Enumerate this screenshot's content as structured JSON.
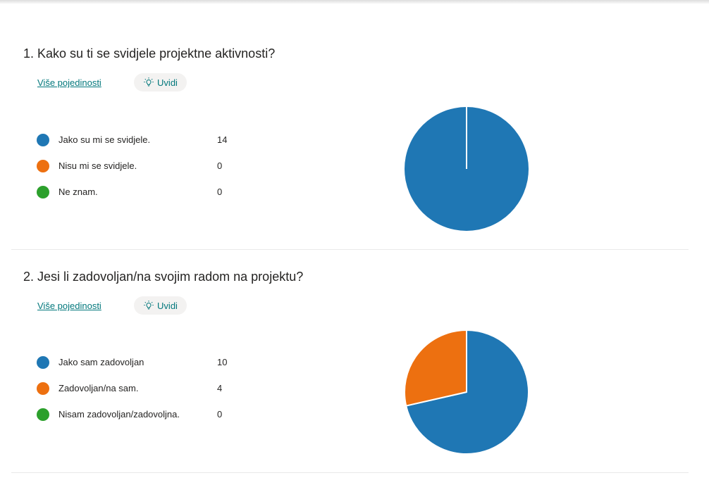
{
  "questions": [
    {
      "number": "1.",
      "title": "Kako su ti se svidjele projektne aktivnosti?",
      "more_details": "Više pojedinosti",
      "insights": "Uvidi",
      "legend": [
        {
          "label": "Jako su mi se svidjele.",
          "count": "14"
        },
        {
          "label": "Nisu mi se svidjele.",
          "count": "0"
        },
        {
          "label": "Ne znam.",
          "count": "0"
        }
      ]
    },
    {
      "number": "2.",
      "title": "Jesi li zadovoljan/na svojim radom na projektu?",
      "more_details": "Više pojedinosti",
      "insights": "Uvidi",
      "legend": [
        {
          "label": "Jako sam zadovoljan",
          "count": "10"
        },
        {
          "label": "Zadovoljan/na sam.",
          "count": "4"
        },
        {
          "label": "Nisam zadovoljan/zadovoljna.",
          "count": "0"
        }
      ]
    }
  ],
  "colors": [
    "#1f77b4",
    "#ed7010",
    "#2ca02c"
  ],
  "chart_data": [
    {
      "type": "pie",
      "categories": [
        "Jako su mi se svidjele.",
        "Nisu mi se svidjele.",
        "Ne znam."
      ],
      "values": [
        14,
        0,
        0
      ]
    },
    {
      "type": "pie",
      "categories": [
        "Jako sam zadovoljan",
        "Zadovoljan/na sam.",
        "Nisam zadovoljan/zadovoljna."
      ],
      "values": [
        10,
        4,
        0
      ]
    }
  ]
}
